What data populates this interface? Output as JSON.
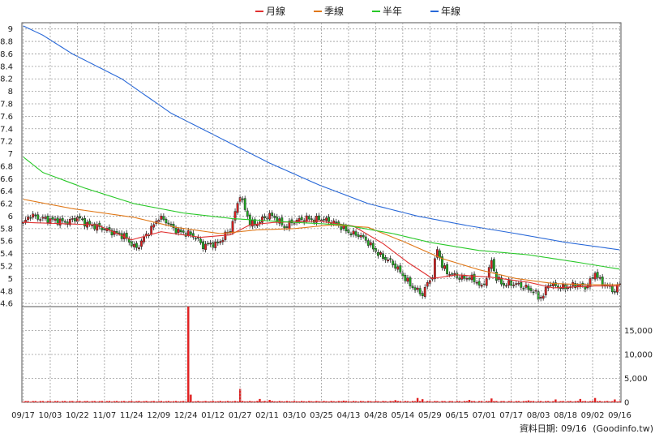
{
  "legend": [
    {
      "label": "月線",
      "color": "#e03030"
    },
    {
      "label": "季線",
      "color": "#e07818"
    },
    {
      "label": "半年",
      "color": "#28c828"
    },
    {
      "label": "年線",
      "color": "#2868d8"
    }
  ],
  "footer": {
    "date_label": "資料日期: 09/16",
    "source": "(Goodinfo.tw)"
  },
  "chart_data": [
    {
      "type": "candlestick",
      "title": "",
      "y_ticks": [
        "9",
        "8.8",
        "8.6",
        "8.4",
        "8.2",
        "8",
        "7.8",
        "7.6",
        "7.4",
        "7.2",
        "7",
        "6.8",
        "6.6",
        "6.4",
        "6.2",
        "6",
        "5.8",
        "5.6",
        "5.4",
        "5.2",
        "5",
        "4.8",
        "4.6"
      ],
      "ylim": [
        4.55,
        9.1
      ],
      "grid": true,
      "x_labels": [
        "09/17",
        "10/03",
        "10/22",
        "11/07",
        "11/24",
        "12/09",
        "12/24",
        "01/12",
        "01/27",
        "02/11",
        "03/10",
        "03/25",
        "04/13",
        "04/28",
        "05/14",
        "05/29",
        "06/15",
        "07/01",
        "07/17",
        "08/03",
        "08/18",
        "09/02",
        "09/16"
      ],
      "x_label_index": [
        0,
        11,
        22,
        33,
        44,
        55,
        66,
        77,
        88,
        99,
        110,
        121,
        132,
        143,
        154,
        165,
        176,
        187,
        198,
        209,
        220,
        231,
        242
      ],
      "trading_days": 243,
      "close_anchors": [
        [
          0,
          5.88
        ],
        [
          3,
          6.02
        ],
        [
          6,
          5.97
        ],
        [
          12,
          5.94
        ],
        [
          18,
          5.9
        ],
        [
          22,
          5.98
        ],
        [
          26,
          5.87
        ],
        [
          30,
          5.83
        ],
        [
          34,
          5.78
        ],
        [
          38,
          5.72
        ],
        [
          41,
          5.68
        ],
        [
          44,
          5.55
        ],
        [
          46,
          5.48
        ],
        [
          49,
          5.65
        ],
        [
          52,
          5.8
        ],
        [
          55,
          5.98
        ],
        [
          58,
          5.92
        ],
        [
          61,
          5.8
        ],
        [
          64,
          5.74
        ],
        [
          67,
          5.72
        ],
        [
          70,
          5.66
        ],
        [
          73,
          5.52
        ],
        [
          76,
          5.56
        ],
        [
          78,
          5.54
        ],
        [
          80,
          5.6
        ],
        [
          82,
          5.7
        ],
        [
          84,
          5.78
        ],
        [
          86,
          6.05
        ],
        [
          88,
          6.35
        ],
        [
          90,
          6.1
        ],
        [
          92,
          5.9
        ],
        [
          94,
          5.86
        ],
        [
          97,
          5.95
        ],
        [
          100,
          6.02
        ],
        [
          103,
          5.95
        ],
        [
          106,
          5.82
        ],
        [
          109,
          5.9
        ],
        [
          112,
          5.94
        ],
        [
          115,
          5.96
        ],
        [
          118,
          5.94
        ],
        [
          121,
          5.96
        ],
        [
          124,
          5.92
        ],
        [
          127,
          5.88
        ],
        [
          130,
          5.8
        ],
        [
          133,
          5.72
        ],
        [
          136,
          5.7
        ],
        [
          139,
          5.62
        ],
        [
          142,
          5.48
        ],
        [
          145,
          5.36
        ],
        [
          148,
          5.3
        ],
        [
          151,
          5.2
        ],
        [
          154,
          5.05
        ],
        [
          157,
          4.9
        ],
        [
          160,
          4.8
        ],
        [
          162,
          4.75
        ],
        [
          164,
          4.92
        ],
        [
          166,
          5.05
        ],
        [
          168,
          5.48
        ],
        [
          170,
          5.2
        ],
        [
          172,
          5.1
        ],
        [
          175,
          5.05
        ],
        [
          178,
          5.0
        ],
        [
          181,
          5.02
        ],
        [
          184,
          4.95
        ],
        [
          186,
          4.85
        ],
        [
          188,
          5.02
        ],
        [
          190,
          5.28
        ],
        [
          192,
          5.0
        ],
        [
          195,
          4.9
        ],
        [
          198,
          4.92
        ],
        [
          201,
          4.9
        ],
        [
          204,
          4.85
        ],
        [
          207,
          4.8
        ],
        [
          209,
          4.7
        ],
        [
          211,
          4.72
        ],
        [
          213,
          4.92
        ],
        [
          216,
          4.88
        ],
        [
          219,
          4.85
        ],
        [
          222,
          4.88
        ],
        [
          225,
          4.9
        ],
        [
          228,
          4.86
        ],
        [
          230,
          4.95
        ],
        [
          232,
          5.1
        ],
        [
          234,
          4.96
        ],
        [
          236,
          4.9
        ],
        [
          238,
          4.85
        ],
        [
          240,
          4.8
        ],
        [
          242,
          4.92
        ]
      ],
      "series": [
        {
          "name": "月線",
          "color": "#e03030",
          "anchors": [
            [
              0,
              5.9
            ],
            [
              30,
              5.86
            ],
            [
              44,
              5.62
            ],
            [
              56,
              5.75
            ],
            [
              72,
              5.66
            ],
            [
              84,
              5.7
            ],
            [
              92,
              5.86
            ],
            [
              102,
              5.9
            ],
            [
              120,
              5.92
            ],
            [
              134,
              5.84
            ],
            [
              146,
              5.56
            ],
            [
              156,
              5.26
            ],
            [
              166,
              5.0
            ],
            [
              176,
              5.06
            ],
            [
              190,
              5.02
            ],
            [
              205,
              4.94
            ],
            [
              215,
              4.85
            ],
            [
              232,
              4.88
            ],
            [
              242,
              4.88
            ]
          ]
        },
        {
          "name": "季線",
          "color": "#e07818",
          "anchors": [
            [
              0,
              6.27
            ],
            [
              20,
              6.12
            ],
            [
              45,
              5.98
            ],
            [
              62,
              5.82
            ],
            [
              80,
              5.72
            ],
            [
              95,
              5.78
            ],
            [
              110,
              5.8
            ],
            [
              125,
              5.86
            ],
            [
              140,
              5.82
            ],
            [
              155,
              5.58
            ],
            [
              170,
              5.32
            ],
            [
              185,
              5.14
            ],
            [
              200,
              5.0
            ],
            [
              215,
              4.92
            ],
            [
              230,
              4.9
            ],
            [
              242,
              4.9
            ]
          ]
        },
        {
          "name": "半年",
          "color": "#28c828",
          "anchors": [
            [
              0,
              6.95
            ],
            [
              8,
              6.7
            ],
            [
              25,
              6.45
            ],
            [
              45,
              6.2
            ],
            [
              65,
              6.05
            ],
            [
              85,
              5.96
            ],
            [
              110,
              5.9
            ],
            [
              130,
              5.86
            ],
            [
              150,
              5.72
            ],
            [
              165,
              5.58
            ],
            [
              185,
              5.45
            ],
            [
              205,
              5.38
            ],
            [
              225,
              5.26
            ],
            [
              242,
              5.15
            ]
          ]
        },
        {
          "name": "年線",
          "color": "#2868d8",
          "anchors": [
            [
              0,
              9.05
            ],
            [
              8,
              8.9
            ],
            [
              20,
              8.6
            ],
            [
              40,
              8.2
            ],
            [
              60,
              7.65
            ],
            [
              80,
              7.25
            ],
            [
              100,
              6.85
            ],
            [
              120,
              6.5
            ],
            [
              140,
              6.2
            ],
            [
              160,
              6.0
            ],
            [
              180,
              5.85
            ],
            [
              200,
              5.72
            ],
            [
              220,
              5.58
            ],
            [
              242,
              5.46
            ]
          ]
        }
      ]
    },
    {
      "type": "bar",
      "title": "",
      "series_name": "volume",
      "y_ticks": [
        "15,000",
        "10,000",
        "5,000",
        "0"
      ],
      "ylim": [
        0,
        20000
      ],
      "grid": true,
      "color": "#e02020",
      "trading_days": 243,
      "base_volume": 200,
      "spikes": [
        [
          67,
          20000
        ],
        [
          68,
          1600
        ],
        [
          88,
          2800
        ],
        [
          96,
          700
        ],
        [
          100,
          500
        ],
        [
          130,
          350
        ],
        [
          151,
          450
        ],
        [
          160,
          900
        ],
        [
          162,
          650
        ],
        [
          181,
          500
        ],
        [
          190,
          800
        ],
        [
          205,
          400
        ],
        [
          216,
          600
        ],
        [
          226,
          700
        ],
        [
          232,
          900
        ],
        [
          240,
          600
        ]
      ]
    }
  ]
}
